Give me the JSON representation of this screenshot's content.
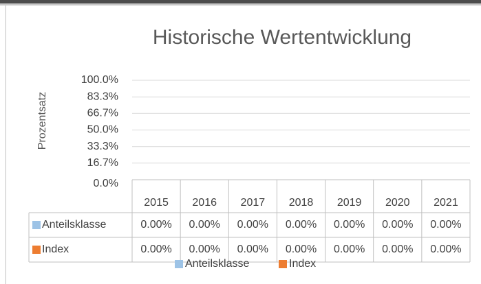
{
  "chart_data": {
    "type": "bar",
    "title": "Historische Wertentwicklung",
    "y_label": "Prozentsatz",
    "categories": [
      "2015",
      "2016",
      "2017",
      "2018",
      "2019",
      "2020",
      "2021"
    ],
    "series": [
      {
        "name": "Anteilsklasse",
        "color": "#9dc3e6",
        "values": [
          0,
          0,
          0,
          0,
          0,
          0,
          0
        ],
        "value_labels": [
          "0.00%",
          "0.00%",
          "0.00%",
          "0.00%",
          "0.00%",
          "0.00%",
          "0.00%"
        ]
      },
      {
        "name": "Index",
        "color": "#ed7d31",
        "values": [
          0,
          0,
          0,
          0,
          0,
          0,
          0
        ],
        "value_labels": [
          "0.00%",
          "0.00%",
          "0.00%",
          "0.00%",
          "0.00%",
          "0.00%",
          "0.00%"
        ]
      }
    ],
    "ylim": [
      0,
      100
    ],
    "yticks": [
      {
        "value": 0,
        "label": "0.0%"
      },
      {
        "value": 16.7,
        "label": "16.7%"
      },
      {
        "value": 33.3,
        "label": "33.3%"
      },
      {
        "value": 50,
        "label": "50.0%"
      },
      {
        "value": 66.7,
        "label": "66.7%"
      },
      {
        "value": 83.3,
        "label": "83.3%"
      },
      {
        "value": 100,
        "label": "100.0%"
      }
    ],
    "grid": true,
    "legend": "bottom"
  }
}
